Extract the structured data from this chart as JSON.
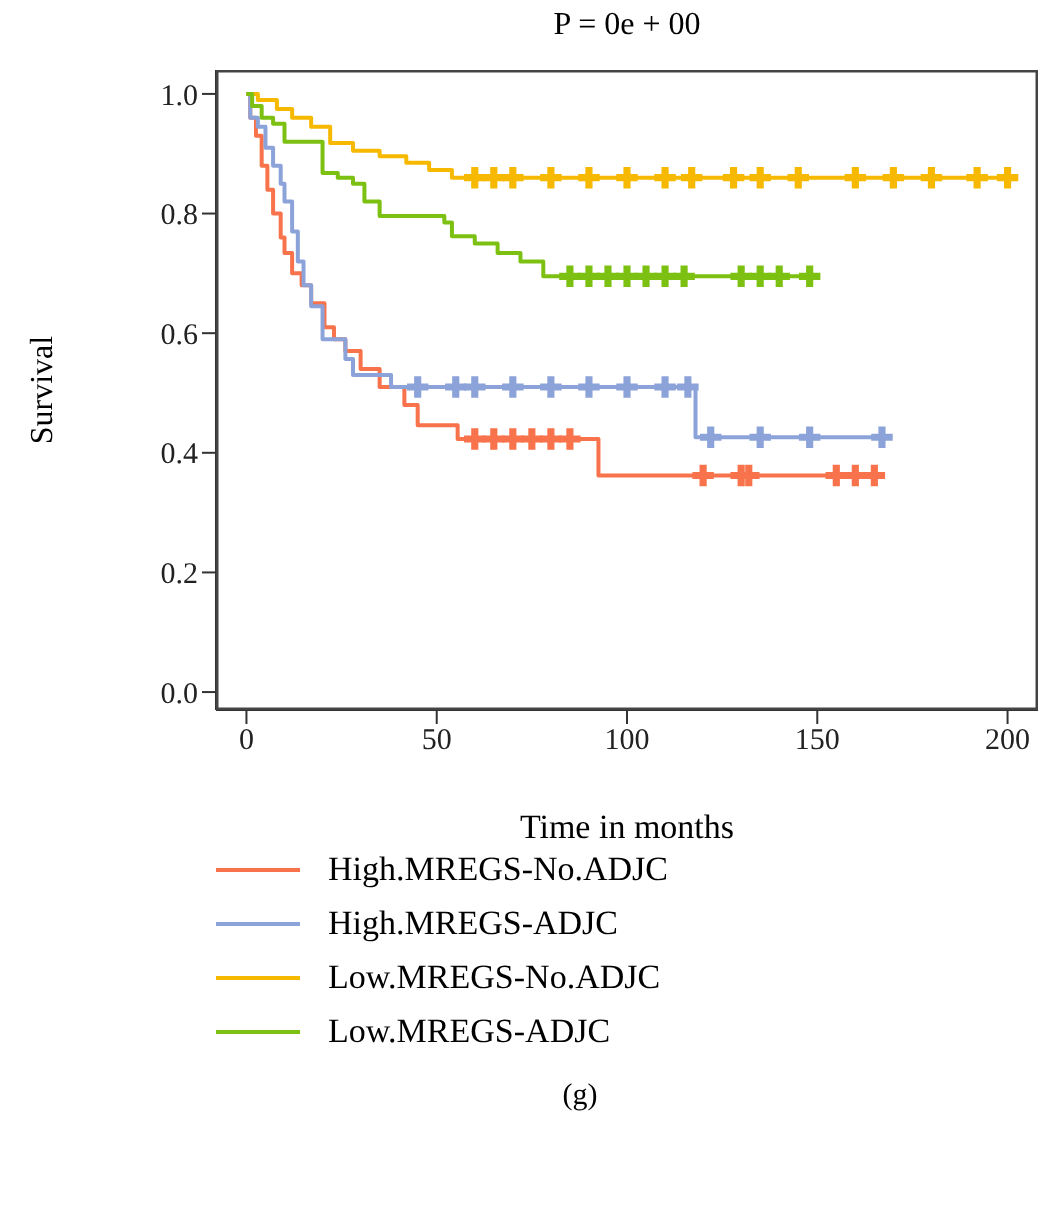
{
  "chart_data": {
    "type": "step",
    "title": "P = 0e + 00",
    "xlabel": "Time in months",
    "ylabel": "Survival",
    "annotations": [
      "(g)"
    ],
    "xlim": [
      -8,
      208
    ],
    "xticks": [
      0,
      50,
      100,
      150,
      200
    ],
    "ylim": [
      -0.03,
      1.04
    ],
    "yticks": [
      {
        "value": 0,
        "label": "0.0"
      },
      {
        "value": 0.2,
        "label": "0.2"
      },
      {
        "value": 0.4,
        "label": "0.4"
      },
      {
        "value": 0.6,
        "label": "0.6"
      },
      {
        "value": 0.8,
        "label": "0.8"
      },
      {
        "value": 1,
        "label": "1.0"
      }
    ],
    "grid": false,
    "legend": "bottom",
    "marker": "none",
    "line_style": "solid",
    "series": [
      {
        "name": "High.MREGS-No.ADJC",
        "color": "#f8734b",
        "x": [
          0,
          1,
          2.5,
          4,
          5.5,
          7,
          9,
          10,
          12,
          14.5,
          17,
          20.5,
          23,
          26,
          30,
          35,
          41.5,
          45,
          55.5,
          92.5,
          166
        ],
        "values": [
          1,
          0.96,
          0.93,
          0.88,
          0.84,
          0.8,
          0.76,
          0.734,
          0.7,
          0.68,
          0.65,
          0.61,
          0.59,
          0.57,
          0.54,
          0.51,
          0.48,
          0.446,
          0.423,
          0.362,
          0.362
        ]
      },
      {
        "name": "High.MREGS-ADJC",
        "color": "#8ca3da",
        "x": [
          0,
          1,
          3,
          5,
          7,
          9,
          10,
          12,
          13.5,
          15,
          17,
          20,
          26,
          28,
          38,
          118,
          169
        ],
        "values": [
          1,
          0.96,
          0.945,
          0.91,
          0.88,
          0.85,
          0.82,
          0.77,
          0.72,
          0.68,
          0.645,
          0.59,
          0.557,
          0.53,
          0.51,
          0.426,
          0.426
        ]
      },
      {
        "name": "Low.MREGS-No.ADJC",
        "color": "#f6b900",
        "x": [
          0,
          3,
          8,
          12,
          17,
          22,
          28,
          35,
          42,
          48,
          54,
          202
        ],
        "values": [
          1,
          0.99,
          0.975,
          0.96,
          0.945,
          0.918,
          0.905,
          0.896,
          0.885,
          0.873,
          0.86,
          0.86
        ]
      },
      {
        "name": "Low.MREGS-ADJC",
        "color": "#7cc112",
        "x": [
          0,
          1.5,
          4,
          7,
          10,
          20,
          24,
          28,
          31,
          35,
          52,
          54,
          60,
          66,
          72,
          78,
          149
        ],
        "values": [
          1,
          0.98,
          0.96,
          0.95,
          0.92,
          0.868,
          0.86,
          0.85,
          0.82,
          0.796,
          0.785,
          0.762,
          0.75,
          0.734,
          0.72,
          0.695,
          0.695
        ]
      },
      {
        "type": "scatter",
        "marker": "cross",
        "color": "#f8734b",
        "x": [
          60,
          65,
          70,
          75,
          80,
          85,
          120,
          130,
          132,
          155,
          160,
          165
        ],
        "values": [
          0.423,
          0.423,
          0.423,
          0.423,
          0.423,
          0.423,
          0.362,
          0.362,
          0.362,
          0.362,
          0.362,
          0.362
        ]
      },
      {
        "type": "scatter",
        "marker": "cross",
        "color": "#8ca3da",
        "x": [
          45,
          55,
          60,
          70,
          80,
          90,
          100,
          110,
          116,
          122,
          135,
          148,
          167
        ],
        "values": [
          0.51,
          0.51,
          0.51,
          0.51,
          0.51,
          0.51,
          0.51,
          0.51,
          0.51,
          0.426,
          0.426,
          0.426,
          0.426
        ]
      },
      {
        "type": "scatter",
        "marker": "cross",
        "color": "#f6b900",
        "x": [
          60,
          65,
          70,
          80,
          90,
          100,
          110,
          117,
          128,
          135,
          145,
          160,
          170,
          180,
          192,
          200
        ],
        "values": [
          0.86,
          0.86,
          0.86,
          0.86,
          0.86,
          0.86,
          0.86,
          0.86,
          0.86,
          0.86,
          0.86,
          0.86,
          0.86,
          0.86,
          0.86,
          0.86
        ]
      },
      {
        "type": "scatter",
        "marker": "cross",
        "color": "#7cc112",
        "x": [
          85,
          90,
          95,
          100,
          105,
          110,
          115,
          130,
          135,
          140,
          148
        ],
        "values": [
          0.695,
          0.695,
          0.695,
          0.695,
          0.695,
          0.695,
          0.695,
          0.695,
          0.695,
          0.695,
          0.695
        ]
      }
    ]
  }
}
